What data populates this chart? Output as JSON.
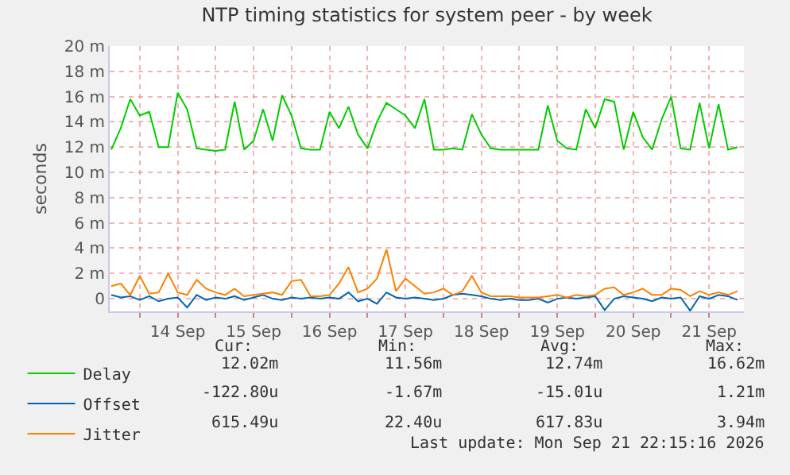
{
  "chart_data": {
    "type": "line",
    "title": "NTP timing statistics for system peer - by week",
    "ylabel": "seconds",
    "x": [
      "2026-09-13T15:00",
      "2026-09-13T18:00",
      "2026-09-13T21:00",
      "2026-09-14T00:00",
      "2026-09-14T03:00",
      "2026-09-14T06:00",
      "2026-09-14T09:00",
      "2026-09-14T12:00",
      "2026-09-14T15:00",
      "2026-09-14T18:00",
      "2026-09-14T21:00",
      "2026-09-15T00:00",
      "2026-09-15T03:00",
      "2026-09-15T06:00",
      "2026-09-15T09:00",
      "2026-09-15T12:00",
      "2026-09-15T15:00",
      "2026-09-15T18:00",
      "2026-09-15T21:00",
      "2026-09-16T00:00",
      "2026-09-16T03:00",
      "2026-09-16T06:00",
      "2026-09-16T09:00",
      "2026-09-16T12:00",
      "2026-09-16T15:00",
      "2026-09-16T18:00",
      "2026-09-16T21:00",
      "2026-09-17T00:00",
      "2026-09-17T03:00",
      "2026-09-17T06:00",
      "2026-09-17T09:00",
      "2026-09-17T12:00",
      "2026-09-17T15:00",
      "2026-09-17T18:00",
      "2026-09-17T21:00",
      "2026-09-18T00:00",
      "2026-09-18T03:00",
      "2026-09-18T06:00",
      "2026-09-18T09:00",
      "2026-09-18T12:00",
      "2026-09-18T15:00",
      "2026-09-18T18:00",
      "2026-09-18T21:00",
      "2026-09-19T00:00",
      "2026-09-19T03:00",
      "2026-09-19T06:00",
      "2026-09-19T09:00",
      "2026-09-19T12:00",
      "2026-09-19T15:00",
      "2026-09-19T18:00",
      "2026-09-19T21:00",
      "2026-09-20T00:00",
      "2026-09-20T03:00",
      "2026-09-20T06:00",
      "2026-09-20T09:00",
      "2026-09-20T12:00",
      "2026-09-20T15:00",
      "2026-09-20T18:00",
      "2026-09-20T21:00",
      "2026-09-21T00:00",
      "2026-09-21T03:00",
      "2026-09-21T06:00",
      "2026-09-21T09:00",
      "2026-09-21T12:00",
      "2026-09-21T15:00",
      "2026-09-21T18:00",
      "2026-09-21T21:00"
    ],
    "series": [
      {
        "name": "Delay",
        "color": "#00cc00",
        "values": [
          11.8,
          13.5,
          15.8,
          14.5,
          14.8,
          12.0,
          12.0,
          16.3,
          15.0,
          11.9,
          11.8,
          11.7,
          11.8,
          15.6,
          11.8,
          12.5,
          15.0,
          12.5,
          16.1,
          14.5,
          11.9,
          11.8,
          11.8,
          14.8,
          13.5,
          15.2,
          13.0,
          11.9,
          14.0,
          15.5,
          15.0,
          14.5,
          13.5,
          15.8,
          11.8,
          11.8,
          11.9,
          11.8,
          14.6,
          13.0,
          11.9,
          11.8,
          11.8,
          11.8,
          11.8,
          11.8,
          15.3,
          12.5,
          11.9,
          11.8,
          15.0,
          13.5,
          15.8,
          15.6,
          11.8,
          14.8,
          12.8,
          11.8,
          14.2,
          16.0,
          11.9,
          11.8,
          15.5,
          11.9,
          15.4,
          11.8,
          12.0
        ]
      },
      {
        "name": "Offset",
        "color": "#0066b3",
        "values": [
          0.3,
          0.1,
          0.2,
          -0.1,
          0.2,
          -0.2,
          0.0,
          0.1,
          -0.7,
          0.3,
          -0.1,
          0.1,
          0.0,
          0.2,
          -0.1,
          0.1,
          0.3,
          0.0,
          -0.1,
          0.1,
          0.0,
          0.1,
          0.0,
          0.1,
          0.0,
          0.5,
          -0.2,
          0.0,
          -0.4,
          0.5,
          0.1,
          0.0,
          0.1,
          0.0,
          -0.1,
          0.0,
          0.3,
          0.4,
          0.3,
          0.2,
          0.0,
          -0.1,
          0.0,
          -0.1,
          -0.1,
          0.0,
          -0.3,
          0.0,
          0.1,
          0.0,
          0.1,
          0.2,
          -0.9,
          0.0,
          0.2,
          0.1,
          0.0,
          -0.2,
          0.1,
          0.0,
          0.1,
          -0.95,
          0.2,
          0.0,
          0.3,
          0.2,
          -0.1
        ]
      },
      {
        "name": "Jitter",
        "color": "#ff8000",
        "values": [
          1.0,
          1.2,
          0.3,
          1.8,
          0.4,
          0.5,
          2.0,
          0.5,
          0.3,
          1.5,
          0.8,
          0.5,
          0.3,
          0.8,
          0.2,
          0.3,
          0.4,
          0.5,
          0.3,
          1.4,
          1.5,
          0.2,
          0.2,
          0.3,
          1.2,
          2.5,
          0.5,
          0.8,
          1.6,
          3.9,
          0.6,
          1.6,
          1.0,
          0.4,
          0.5,
          0.8,
          0.3,
          0.6,
          1.8,
          0.5,
          0.2,
          0.2,
          0.2,
          0.1,
          0.1,
          0.1,
          0.2,
          0.3,
          0.1,
          0.3,
          0.2,
          0.3,
          0.8,
          0.9,
          0.3,
          0.5,
          0.8,
          0.3,
          0.3,
          0.8,
          0.7,
          0.2,
          0.6,
          0.3,
          0.5,
          0.3,
          0.6
        ]
      }
    ],
    "xlim": [
      "2026-09-13T14:30",
      "2026-09-21T23:00"
    ],
    "xticks": [
      {
        "value": "2026-09-14T00:00",
        "label": null
      },
      {
        "value": "2026-09-14T12:00",
        "label": "14 Sep"
      },
      {
        "value": "2026-09-15T00:00",
        "label": null
      },
      {
        "value": "2026-09-15T12:00",
        "label": "15 Sep"
      },
      {
        "value": "2026-09-16T00:00",
        "label": null
      },
      {
        "value": "2026-09-16T12:00",
        "label": "16 Sep"
      },
      {
        "value": "2026-09-17T00:00",
        "label": null
      },
      {
        "value": "2026-09-17T12:00",
        "label": "17 Sep"
      },
      {
        "value": "2026-09-18T00:00",
        "label": null
      },
      {
        "value": "2026-09-18T12:00",
        "label": "18 Sep"
      },
      {
        "value": "2026-09-19T00:00",
        "label": null
      },
      {
        "value": "2026-09-19T12:00",
        "label": "19 Sep"
      },
      {
        "value": "2026-09-20T00:00",
        "label": null
      },
      {
        "value": "2026-09-20T12:00",
        "label": "20 Sep"
      },
      {
        "value": "2026-09-21T00:00",
        "label": null
      },
      {
        "value": "2026-09-21T12:00",
        "label": "21 Sep"
      }
    ],
    "ylim": [
      -1,
      20
    ],
    "yticks": [
      0,
      {
        "value": 2,
        "label": "2 m"
      },
      {
        "value": 4,
        "label": "4 m"
      },
      {
        "value": 6,
        "label": "6 m"
      },
      {
        "value": 8,
        "label": "8 m"
      },
      {
        "value": 10,
        "label": "10 m"
      },
      {
        "value": 12,
        "label": "12 m"
      },
      {
        "value": 14,
        "label": "14 m"
      },
      {
        "value": 16,
        "label": "16 m"
      },
      {
        "value": 18,
        "label": "18 m"
      },
      {
        "value": 20,
        "label": "20 m"
      }
    ],
    "grid": true,
    "legend": "bottom",
    "marker": "none",
    "line_style": "solid",
    "annotations": [
      "Cur:",
      "Min:",
      "Avg:",
      "Max:",
      "12.02m",
      "11.56m",
      "12.74m",
      "16.62m",
      "-122.80u",
      "-1.67m",
      "-15.01u",
      "1.21m",
      "615.49u",
      "22.40u",
      "617.83u",
      "3.94m",
      "Last update: Mon Sep 21 22:15:16 2026"
    ]
  }
}
